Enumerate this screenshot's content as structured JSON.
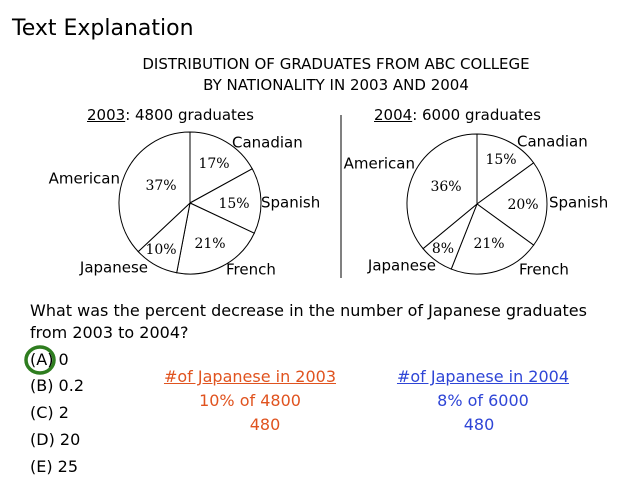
{
  "heading": "Text Explanation",
  "chart_title_lines": [
    "DISTRIBUTION OF GRADUATES FROM ABC COLLEGE",
    "BY NATIONALITY IN 2003 AND 2004"
  ],
  "chart_data": [
    {
      "type": "pie",
      "year": "2003",
      "year_suffix": ": 4800 graduates",
      "slices": [
        {
          "name": "Canadian",
          "percent_label": "17%",
          "value": 17
        },
        {
          "name": "Spanish",
          "percent_label": "15%",
          "value": 15
        },
        {
          "name": "French",
          "percent_label": "21%",
          "value": 21
        },
        {
          "name": "Japanese",
          "percent_label": "10%",
          "value": 10
        },
        {
          "name": "American",
          "percent_label": "37%",
          "value": 37
        }
      ]
    },
    {
      "type": "pie",
      "year": "2004",
      "year_suffix": ": 6000 graduates",
      "slices": [
        {
          "name": "Canadian",
          "percent_label": "15%",
          "value": 15
        },
        {
          "name": "Spanish",
          "percent_label": "20%",
          "value": 20
        },
        {
          "name": "French",
          "percent_label": "21%",
          "value": 21
        },
        {
          "name": "Japanese",
          "percent_label": "8%",
          "value": 8
        },
        {
          "name": "American",
          "percent_label": "36%",
          "value": 36
        }
      ]
    }
  ],
  "question": "What was the percent decrease in the number of Japanese graduates from 2003 to 2004?",
  "choices": [
    "(A) 0",
    "(B) 0.2",
    "(C) 2",
    "(D) 20",
    "(E) 25"
  ],
  "highlight_color": "#2e7d1f",
  "work_2003": {
    "title": "#of Japanese in 2003",
    "line1": "10% of 4800",
    "line2": "480",
    "color": "#e0531f"
  },
  "work_2004": {
    "title": "#of Japanese in 2004",
    "line1": "8% of 6000",
    "line2": "480",
    "color": "#2e45d6"
  }
}
